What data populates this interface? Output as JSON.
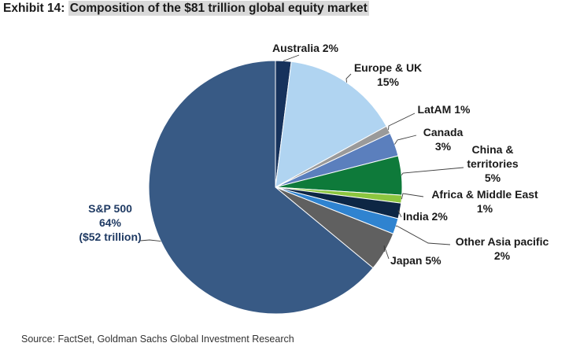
{
  "exhibit": {
    "prefix": "Exhibit 14:",
    "title": "Composition of the $81 trillion global equity market"
  },
  "source": "Source: FactSet, Goldman Sachs Global Investment Research",
  "chart_data": {
    "type": "pie",
    "title": "Composition of the $81 trillion global equity market",
    "unit": "%",
    "start": "12 o'clock",
    "direction": "clockwise",
    "slices": [
      {
        "name": "Australia",
        "value": 2,
        "color": "#16325c",
        "label_lines": [
          "Australia 2%"
        ]
      },
      {
        "name": "Europe & UK",
        "value": 15,
        "color": "#b0d4f1",
        "label_lines": [
          "Europe & UK",
          "15%"
        ]
      },
      {
        "name": "LatAM",
        "value": 1,
        "color": "#9a9a9a",
        "label_lines": [
          "LatAM 1%"
        ]
      },
      {
        "name": "Canada",
        "value": 3,
        "color": "#5b7fbd",
        "label_lines": [
          "Canada",
          "3%"
        ]
      },
      {
        "name": "China & territories",
        "value": 5,
        "color": "#0e7a3a",
        "label_lines": [
          "China &",
          "territories",
          "5%"
        ]
      },
      {
        "name": "Africa & Middle East",
        "value": 1,
        "color": "#8cc63f",
        "label_lines": [
          "Africa & Middle East",
          "1%"
        ]
      },
      {
        "name": "India",
        "value": 2,
        "color": "#0d2644",
        "label_lines": [
          "India 2%"
        ]
      },
      {
        "name": "Other Asia pacific",
        "value": 2,
        "color": "#2f83d0",
        "label_lines": [
          "Other Asia pacific",
          "2%"
        ]
      },
      {
        "name": "Japan",
        "value": 5,
        "color": "#606060",
        "label_lines": [
          "Japan 5%"
        ]
      },
      {
        "name": "S&P 500",
        "value": 64,
        "color": "#385a85",
        "label_lines": [
          "S&P 500",
          "64%",
          "($52 trillion)"
        ]
      }
    ]
  }
}
